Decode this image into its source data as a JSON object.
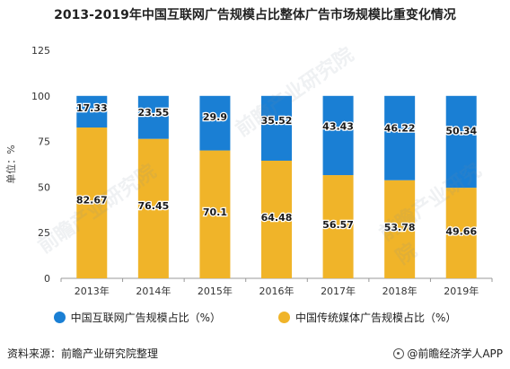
{
  "chart_data": {
    "type": "bar",
    "stacked": true,
    "title": "2013-2019年中国互联网广告规模占比整体广告市场规模比重变化情况",
    "ylabel": "单位：%",
    "xlabel": "",
    "ylim": [
      0,
      125
    ],
    "yticks": [
      0,
      25,
      50,
      75,
      100,
      125
    ],
    "grid": false,
    "legend_position": "bottom",
    "categories": [
      "2013年",
      "2014年",
      "2015年",
      "2016年",
      "2017年",
      "2018年",
      "2019年"
    ],
    "series": [
      {
        "name": "中国传统媒体广告规模占比（%）",
        "color": "#f0b429",
        "values": [
          82.67,
          76.45,
          70.1,
          64.48,
          56.57,
          53.78,
          49.66
        ],
        "labels": [
          "82.67",
          "76.45",
          "70.1",
          "64.48",
          "56.57",
          "53.78",
          "49.66"
        ]
      },
      {
        "name": "中国互联网广告规模占比（%）",
        "color": "#1a7fd4",
        "values": [
          17.33,
          23.55,
          29.9,
          35.52,
          43.43,
          46.22,
          50.34
        ],
        "labels": [
          "17.33",
          "23.55",
          "29.9",
          "35.52",
          "43.43",
          "46.22",
          "50.34"
        ]
      }
    ]
  },
  "legend": {
    "internet_label": "中国互联网广告规模占比（%）",
    "internet_color": "#1a7fd4",
    "traditional_label": "中国传统媒体广告规模占比（%）",
    "traditional_color": "#f0b429"
  },
  "footer": {
    "source": "资料来源：前瞻产业研究院整理",
    "credit": "@前瞻经济学人APP"
  },
  "watermark_text": "前瞻产业研究院"
}
